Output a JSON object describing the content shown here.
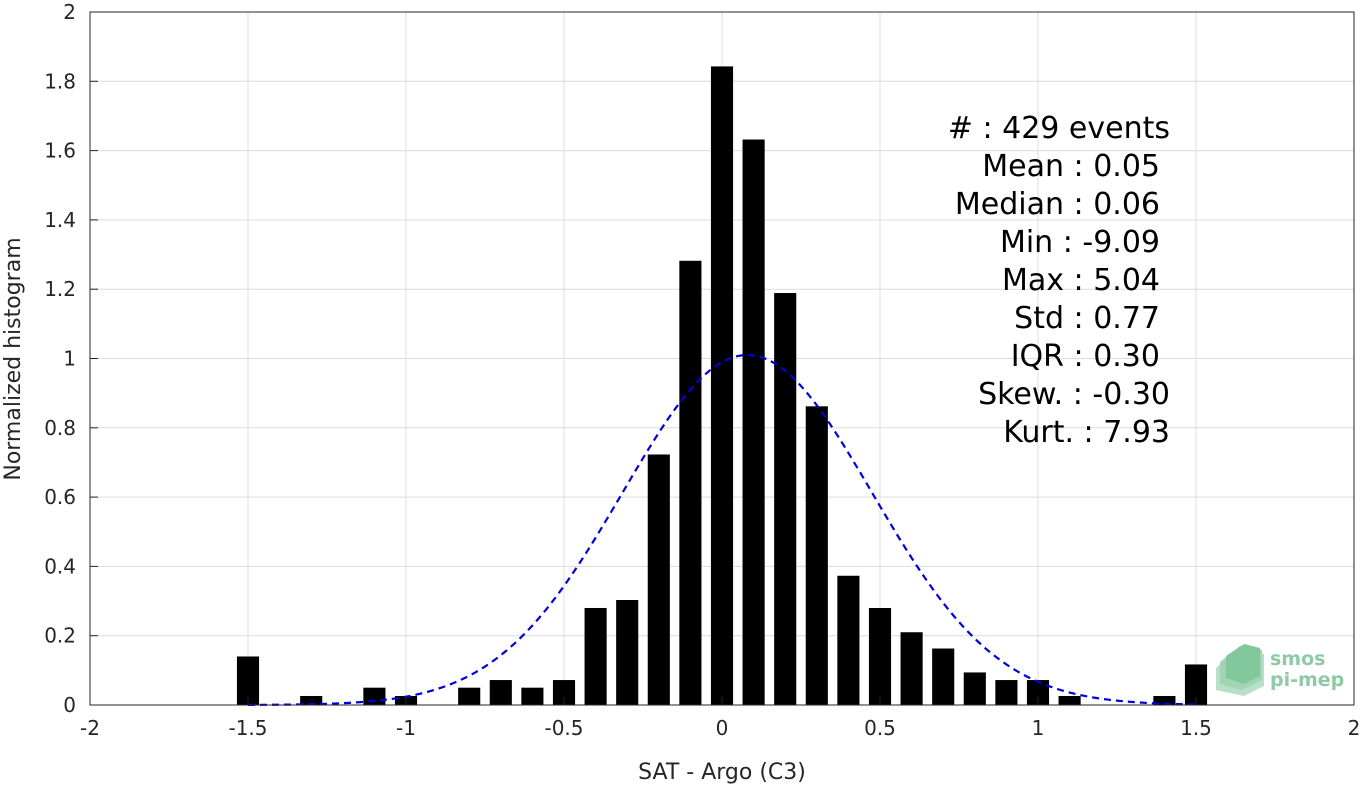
{
  "chart_data": {
    "type": "bar",
    "xlabel": "SAT - Argo (C3)",
    "ylabel": "Normalized histogram",
    "xlim": [
      -2,
      2
    ],
    "ylim": [
      0,
      2
    ],
    "xticks": [
      "-2",
      "-1.5",
      "-1",
      "-0.5",
      "0",
      "0.5",
      "1",
      "1.5",
      "2"
    ],
    "yticks": [
      "0",
      "0.2",
      "0.4",
      "0.6",
      "0.8",
      "1",
      "1.2",
      "1.4",
      "1.6",
      "1.8",
      "2"
    ],
    "grid": true,
    "bar_width": 0.07,
    "bars": {
      "x": [
        -1.5,
        -1.3,
        -1.1,
        -1.0,
        -0.8,
        -0.7,
        -0.6,
        -0.5,
        -0.4,
        -0.3,
        -0.2,
        -0.1,
        0.0,
        0.1,
        0.2,
        0.3,
        0.4,
        0.5,
        0.6,
        0.7,
        0.8,
        0.9,
        1.0,
        1.1,
        1.4,
        1.5
      ],
      "values": [
        0.14,
        0.026,
        0.05,
        0.026,
        0.05,
        0.072,
        0.05,
        0.072,
        0.28,
        0.303,
        0.723,
        1.282,
        1.843,
        1.632,
        1.189,
        0.862,
        0.373,
        0.28,
        0.21,
        0.163,
        0.094,
        0.072,
        0.072,
        0.026,
        0.026,
        0.117
      ],
      "color": "#000000"
    },
    "fit_curve": {
      "style": "dashed",
      "color": "#0000dd",
      "mean": 0.08,
      "peak": 1.01,
      "sigma": 0.395,
      "x_range": [
        -1.5,
        1.5
      ]
    },
    "annotations": [
      {
        "text": "#  : 429 events",
        "align": "end"
      },
      {
        "text": "Mean : 0.05",
        "align": "end"
      },
      {
        "text": "Median : 0.06",
        "align": "end"
      },
      {
        "text": "Min : -9.09",
        "align": "end"
      },
      {
        "text": "Max : 5.04",
        "align": "end"
      },
      {
        "text": "Std : 0.77",
        "align": "end"
      },
      {
        "text": "IQR : 0.30",
        "align": "end"
      },
      {
        "text": "Skew. : -0.30",
        "align": "end"
      },
      {
        "text": "Kurt. : 7.93",
        "align": "end"
      }
    ]
  },
  "logo": {
    "line1": "smos",
    "line2": "pi-mep",
    "color": "#8fc9a6"
  }
}
